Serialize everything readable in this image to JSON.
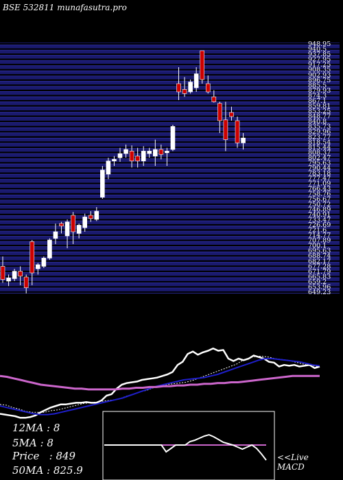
{
  "title": "BSE 532811 munafasutra.pro",
  "stats": {
    "ma12": "12MA : 8",
    "ma5": "5MA : 8",
    "price": "Price   : 849",
    "ma50": "50MA : 825.9"
  },
  "macd_label": {
    "line1": "<<Live",
    "line2": "MACD"
  },
  "colors": {
    "background": "#000000",
    "grid_band": "#1a1a6e",
    "grid_line": "#3333aa",
    "bull": "#ffffff",
    "bear": "#cc0000",
    "ma_short": "#ffffff",
    "ma_mid": "#1f1fcc",
    "ma_long": "#cc66cc",
    "macd_line": "#ffffff",
    "macd_signal": "#cc66cc"
  },
  "chart_data": [
    {
      "type": "candlestick",
      "title": "BSE 532811 munafasutra.pro",
      "ylim": [
        645,
        950
      ],
      "y_tick_labels": [
        "948.95",
        "940.5",
        "937.85",
        "927.95",
        "917.25",
        "908.35",
        "902.93",
        "896.75",
        "885.5",
        "879.93",
        "874.3",
        "867.1",
        "859.81",
        "853.25",
        "848.77",
        "840.8",
        "835.73",
        "829.96",
        "823.77",
        "818.54",
        "815.44",
        "808.37",
        "802.47",
        "795.63",
        "790.44",
        "783.18",
        "777.47",
        "771.09",
        "766.43",
        "758.76",
        "756.67",
        "750.72",
        "746.89",
        "740.91",
        "733.47",
        "726.69",
        "721.6",
        "714.77",
        "707.89",
        "700.1",
        "695.63",
        "688.74",
        "682.17",
        "677.28",
        "671.79",
        "665.83",
        "659.2",
        "653.96",
        "649.23"
      ],
      "candles": [
        {
          "o": 678,
          "h": 690,
          "l": 658,
          "c": 662
        },
        {
          "o": 660,
          "h": 668,
          "l": 654,
          "c": 664
        },
        {
          "o": 663,
          "h": 675,
          "l": 660,
          "c": 672
        },
        {
          "o": 672,
          "h": 678,
          "l": 655,
          "c": 666
        },
        {
          "o": 665,
          "h": 668,
          "l": 645,
          "c": 652
        },
        {
          "o": 708,
          "h": 710,
          "l": 655,
          "c": 670
        },
        {
          "o": 675,
          "h": 682,
          "l": 668,
          "c": 680
        },
        {
          "o": 678,
          "h": 690,
          "l": 676,
          "c": 688
        },
        {
          "o": 688,
          "h": 712,
          "l": 686,
          "c": 710
        },
        {
          "o": 712,
          "h": 730,
          "l": 705,
          "c": 720
        },
        {
          "o": 730,
          "h": 732,
          "l": 718,
          "c": 727
        },
        {
          "o": 715,
          "h": 735,
          "l": 700,
          "c": 732
        },
        {
          "o": 740,
          "h": 744,
          "l": 705,
          "c": 720
        },
        {
          "o": 718,
          "h": 730,
          "l": 712,
          "c": 728
        },
        {
          "o": 725,
          "h": 742,
          "l": 720,
          "c": 738
        },
        {
          "o": 740,
          "h": 745,
          "l": 732,
          "c": 736
        },
        {
          "o": 735,
          "h": 750,
          "l": 733,
          "c": 745
        },
        {
          "o": 762,
          "h": 800,
          "l": 760,
          "c": 795
        },
        {
          "o": 790,
          "h": 810,
          "l": 784,
          "c": 806
        },
        {
          "o": 806,
          "h": 812,
          "l": 800,
          "c": 808
        },
        {
          "o": 810,
          "h": 822,
          "l": 805,
          "c": 815
        },
        {
          "o": 815,
          "h": 826,
          "l": 810,
          "c": 820
        },
        {
          "o": 818,
          "h": 825,
          "l": 798,
          "c": 806
        },
        {
          "o": 812,
          "h": 822,
          "l": 798,
          "c": 806
        },
        {
          "o": 806,
          "h": 824,
          "l": 800,
          "c": 818
        },
        {
          "o": 815,
          "h": 822,
          "l": 810,
          "c": 818
        },
        {
          "o": 812,
          "h": 832,
          "l": 800,
          "c": 820
        },
        {
          "o": 820,
          "h": 826,
          "l": 808,
          "c": 814
        },
        {
          "o": 816,
          "h": 822,
          "l": 800,
          "c": 818
        },
        {
          "o": 820,
          "h": 850,
          "l": 818,
          "c": 848
        },
        {
          "o": 900,
          "h": 920,
          "l": 880,
          "c": 890
        },
        {
          "o": 893,
          "h": 908,
          "l": 884,
          "c": 888
        },
        {
          "o": 890,
          "h": 905,
          "l": 888,
          "c": 902
        },
        {
          "o": 895,
          "h": 920,
          "l": 890,
          "c": 912
        },
        {
          "o": 940,
          "h": 940,
          "l": 900,
          "c": 905
        },
        {
          "o": 900,
          "h": 910,
          "l": 888,
          "c": 890
        },
        {
          "o": 884,
          "h": 892,
          "l": 877,
          "c": 878
        },
        {
          "o": 876,
          "h": 878,
          "l": 840,
          "c": 855
        },
        {
          "o": 856,
          "h": 878,
          "l": 818,
          "c": 832
        },
        {
          "o": 865,
          "h": 872,
          "l": 855,
          "c": 860
        },
        {
          "o": 855,
          "h": 860,
          "l": 822,
          "c": 828
        },
        {
          "o": 828,
          "h": 840,
          "l": 820,
          "c": 834
        }
      ]
    },
    {
      "type": "line",
      "title": "",
      "ylim": [
        0,
        100
      ],
      "series": [
        {
          "values": [
            10,
            9,
            8,
            7,
            5,
            5,
            6,
            8,
            12,
            15,
            18,
            20,
            22,
            22,
            23,
            24,
            24,
            25,
            24,
            24,
            27,
            33,
            35,
            42,
            47,
            49,
            50,
            51,
            53,
            54,
            55,
            56,
            58,
            60,
            63,
            72,
            76,
            86,
            89,
            85,
            88,
            90,
            93,
            90,
            91,
            80,
            77,
            80,
            78,
            80,
            84,
            82,
            80,
            76,
            75,
            70,
            72,
            71,
            72,
            70,
            71,
            72,
            68,
            70
          ]
        },
        {
          "values": [
            22,
            21,
            18,
            16,
            13,
            12,
            12,
            12,
            14,
            15,
            17,
            19,
            21,
            23,
            24,
            25,
            26,
            27,
            28,
            30,
            33,
            35,
            38,
            40,
            43,
            45,
            47,
            48,
            49,
            50,
            52,
            55,
            58,
            61,
            64,
            67,
            70,
            73,
            78,
            81,
            83,
            83,
            82,
            80,
            79,
            78,
            76,
            74,
            72,
            71,
            70
          ]
        },
        {
          "values": [
            20,
            18,
            16,
            14,
            12,
            10,
            9,
            9,
            10,
            12,
            14,
            16,
            18,
            20,
            22,
            24,
            26,
            28,
            30,
            33,
            36,
            39,
            42,
            45,
            47,
            49,
            51,
            53,
            54,
            55,
            56,
            58,
            60,
            63,
            66,
            69,
            72,
            75,
            78,
            80,
            80,
            79,
            78,
            77,
            76,
            74,
            72,
            71
          ]
        },
        {
          "values": [
            58,
            57,
            55,
            53,
            51,
            49,
            47,
            46,
            45,
            44,
            43,
            42,
            42,
            41,
            41,
            41,
            41,
            41,
            42,
            42,
            43,
            43,
            44,
            44,
            45,
            45,
            46,
            46,
            47,
            47,
            48,
            48,
            49,
            49,
            50,
            50,
            51,
            52,
            53,
            54,
            55,
            56,
            57,
            58,
            58,
            58,
            58,
            58
          ]
        }
      ]
    },
    {
      "type": "line",
      "title": "",
      "ylim": [
        -5,
        5
      ],
      "series": [
        {
          "values": [
            0,
            0,
            0,
            0,
            0,
            0,
            0,
            0,
            0,
            0,
            0,
            0,
            0,
            -1,
            -0.5,
            0,
            0,
            0,
            0.5,
            0.7,
            1,
            1.3,
            1.5,
            1.2,
            0.8,
            0.4,
            0.2,
            0,
            -0.3,
            -0.6,
            -0.3,
            0,
            -0.5,
            -1.3,
            -2.2
          ]
        },
        {
          "values": [
            0,
            0,
            0,
            0,
            0,
            0,
            0,
            0,
            0,
            0,
            0,
            0,
            0,
            0,
            0,
            0,
            0,
            0,
            0,
            0,
            0,
            0,
            0,
            0,
            0,
            0,
            0,
            0,
            0,
            0,
            0,
            0,
            0,
            0,
            0
          ]
        }
      ]
    }
  ]
}
